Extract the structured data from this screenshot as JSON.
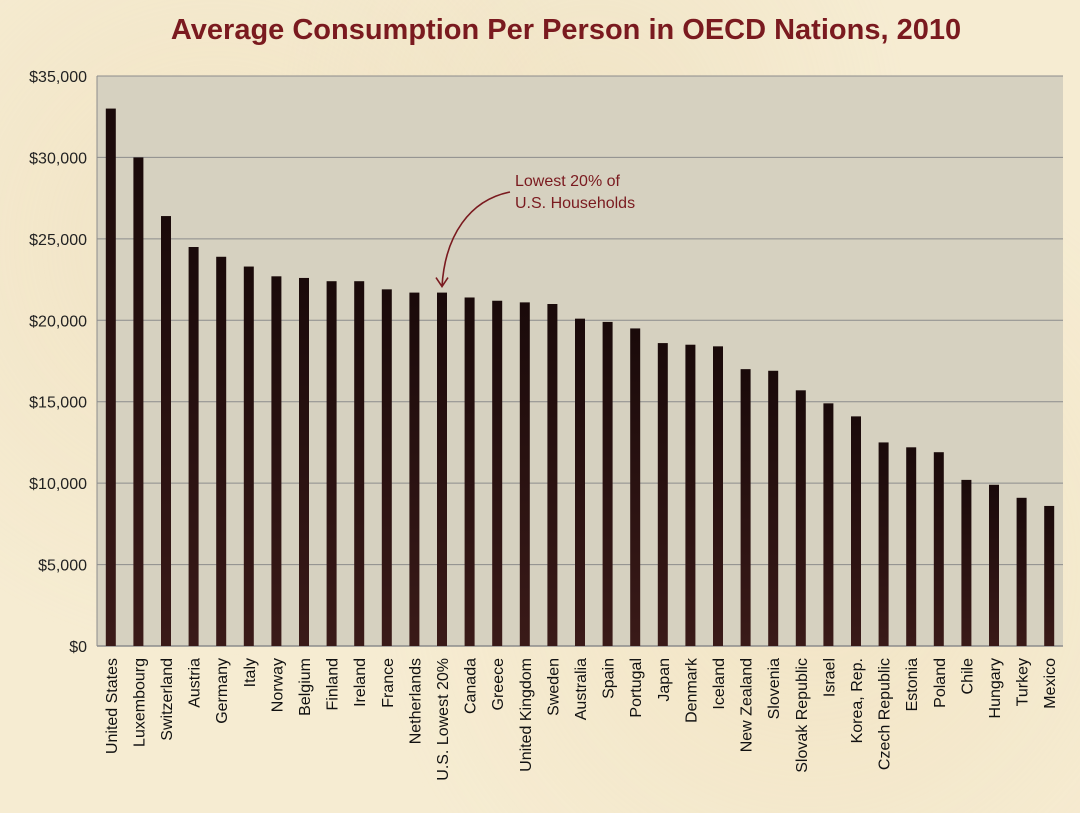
{
  "colors": {
    "title": "#7a1a1f",
    "plot_bg": "#d6d1c0",
    "bar_top": "#1a0a0a",
    "bar_bottom": "#3a1a18",
    "gridline": "#8c8c8c",
    "annotation": "#7a1a1f"
  },
  "chart_data": {
    "type": "bar",
    "title": "Average Consumption Per Person in OECD Nations, 2010",
    "xlabel": "",
    "ylabel": "",
    "ylim": [
      0,
      35000
    ],
    "yticks": [
      0,
      5000,
      10000,
      15000,
      20000,
      25000,
      30000,
      35000
    ],
    "ytick_labels": [
      "$0",
      "$5,000",
      "$10,000",
      "$15,000",
      "$20,000",
      "$25,000",
      "$30,000",
      "$35,000"
    ],
    "grid": true,
    "legend": "none",
    "categories": [
      "United States",
      "Luxembourg",
      "Switzerland",
      "Austria",
      "Germany",
      "Italy",
      "Norway",
      "Belgium",
      "Finland",
      "Ireland",
      "France",
      "Netherlands",
      "U.S. Lowest 20%",
      "Canada",
      "Greece",
      "United Kingdom",
      "Sweden",
      "Australia",
      "Spain",
      "Portugal",
      "Japan",
      "Denmark",
      "Iceland",
      "New Zealand",
      "Slovenia",
      "Slovak Republic",
      "Israel",
      "Korea, Rep.",
      "Czech Republic",
      "Estonia",
      "Poland",
      "Chile",
      "Hungary",
      "Turkey",
      "Mexico"
    ],
    "values": [
      33000,
      30000,
      26400,
      24500,
      23900,
      23300,
      22700,
      22600,
      22400,
      22400,
      21900,
      21700,
      21700,
      21400,
      21200,
      21100,
      21000,
      20100,
      19900,
      19500,
      18600,
      18500,
      18400,
      17000,
      16900,
      15700,
      14900,
      14100,
      12500,
      12200,
      11900,
      10200,
      9900,
      9100,
      8600
    ],
    "annotation": {
      "line1": "Lowest  20% of",
      "line2": "U.S. Households",
      "target_category": "U.S. Lowest 20%"
    }
  }
}
